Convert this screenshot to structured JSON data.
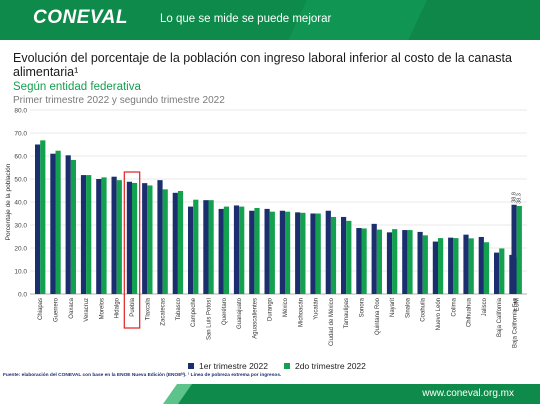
{
  "header": {
    "logo": "CONEVAL",
    "tagline": "Lo que se mide se puede mejorar"
  },
  "title": "Evolución del porcentaje de la población con ingreso laboral inferior al costo de la canasta alimentaria¹",
  "subtitle": "Según entidad federativa",
  "period": "Primer trimestre 2022 y segundo trimestre 2022",
  "footer": {
    "note": "Fuente: elaboración del CONEVAL con base en la ENOE Nueva Edición (ENOEᴺ). ¹ Línea de pobreza extrema por ingresos.",
    "url": "www.coneval.org.mx"
  },
  "colors": {
    "series1": "#1b2f6e",
    "series2": "#13a04f",
    "highlight": "#e02020",
    "header": "#0e8b4a"
  },
  "chart_data": {
    "type": "bar",
    "ylabel": "Porcentaje de la población",
    "ylim": [
      0,
      80
    ],
    "yticks": [
      "0.0",
      "10.0",
      "20.0",
      "30.0",
      "40.0",
      "50.0",
      "60.0",
      "70.0",
      "80.0"
    ],
    "grid": true,
    "legend_position": "bottom",
    "highlighted_category": "Puebla",
    "categories": [
      "Chiapas",
      "Guerrero",
      "Oaxaca",
      "Veracruz",
      "Morelos",
      "Hidalgo",
      "Puebla",
      "Tlaxcala",
      "Zacatecas",
      "Tabasco",
      "Campeche",
      "San Luis Potosí",
      "Querétaro",
      "Guanajuato",
      "Aguascalientes",
      "Durango",
      "México",
      "Michoacán",
      "Yucatán",
      "Ciudad de México",
      "Tamaulipas",
      "Sonora",
      "Quintana Roo",
      "Nayarit",
      "Sinaloa",
      "Coahuila",
      "Nuevo León",
      "Colima",
      "Chihuahua",
      "Jalisco",
      "Baja California",
      "Baja California Sur",
      "EUM"
    ],
    "series": [
      {
        "name": "1er trimestre 2022",
        "values": [
          65.0,
          61.0,
          60.3,
          51.7,
          50.0,
          51.0,
          48.8,
          48.2,
          49.5,
          44.0,
          38.0,
          40.8,
          37.0,
          38.5,
          36.2,
          37.0,
          36.2,
          35.5,
          35.0,
          36.2,
          33.5,
          28.7,
          30.5,
          26.8,
          27.8,
          27.0,
          22.8,
          24.5,
          25.8,
          24.8,
          18.0,
          17.0,
          38.8
        ]
      },
      {
        "name": "2do trimestre 2022",
        "values": [
          66.8,
          62.3,
          58.3,
          51.7,
          50.7,
          49.5,
          48.3,
          47.2,
          45.5,
          44.8,
          41.0,
          40.8,
          38.0,
          38.0,
          37.4,
          35.8,
          35.8,
          35.3,
          35.0,
          33.5,
          31.8,
          28.5,
          28.0,
          28.2,
          27.8,
          25.5,
          24.3,
          24.3,
          24.2,
          22.5,
          19.8,
          15.8,
          38.3
        ]
      }
    ],
    "data_labels": {
      "EUM": [
        "38.8",
        "38.3"
      ]
    }
  }
}
